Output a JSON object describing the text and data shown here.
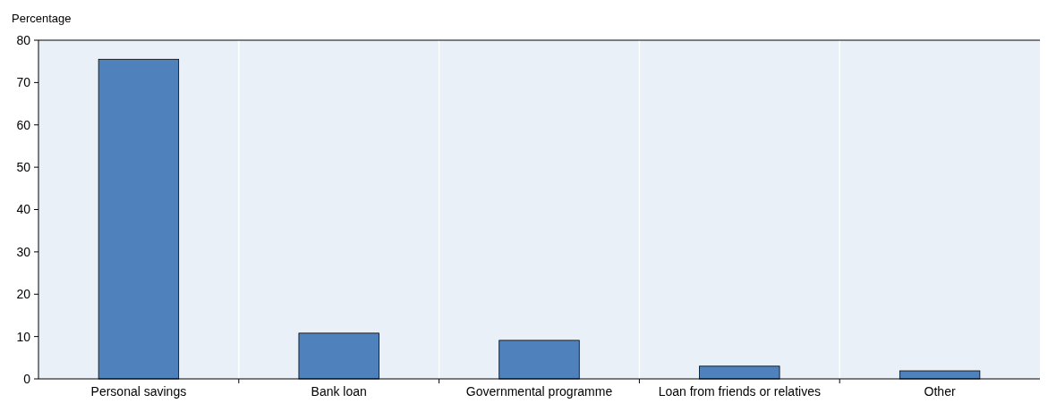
{
  "chart_data": {
    "type": "bar",
    "ylabel": "Percentage",
    "categories": [
      "Personal savings",
      "Bank loan",
      "Governmental programme",
      "Loan from friends or relatives",
      "Other"
    ],
    "values": [
      75.5,
      10.8,
      9.1,
      3,
      1.9
    ],
    "color": "#4f81bd",
    "ylim": [
      0,
      80
    ],
    "yticks": [
      0,
      10,
      20,
      30,
      40,
      50,
      60,
      70,
      80
    ],
    "grid": "x"
  }
}
